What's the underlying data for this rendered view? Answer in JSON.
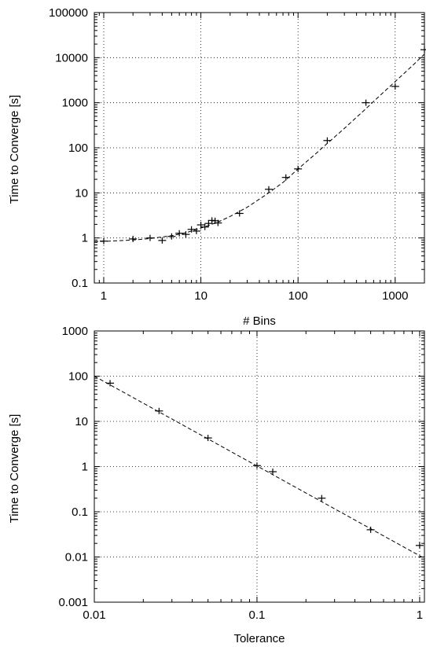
{
  "chart_data": [
    {
      "type": "scatter",
      "xlabel": "# Bins",
      "ylabel": "Time to Converge [s]",
      "xscale": "log",
      "yscale": "log",
      "xlim": [
        0.8,
        2000
      ],
      "ylim": [
        0.1,
        100000
      ],
      "grid": true,
      "x_ticks": [
        {
          "v": 1,
          "label": "1"
        },
        {
          "v": 10,
          "label": "10"
        },
        {
          "v": 100,
          "label": "100"
        },
        {
          "v": 1000,
          "label": "1000"
        }
      ],
      "y_ticks": [
        {
          "v": 0.1,
          "label": "0.1"
        },
        {
          "v": 1,
          "label": "1"
        },
        {
          "v": 10,
          "label": "10"
        },
        {
          "v": 100,
          "label": "100"
        },
        {
          "v": 1000,
          "label": "1000"
        },
        {
          "v": 10000,
          "label": "10000"
        },
        {
          "v": 100000,
          "label": "100000"
        }
      ],
      "points": [
        {
          "x": 1,
          "y": 0.85
        },
        {
          "x": 2,
          "y": 0.95
        },
        {
          "x": 3,
          "y": 1.0
        },
        {
          "x": 4,
          "y": 0.88
        },
        {
          "x": 5,
          "y": 1.08
        },
        {
          "x": 6,
          "y": 1.27
        },
        {
          "x": 7,
          "y": 1.2
        },
        {
          "x": 8,
          "y": 1.55
        },
        {
          "x": 9,
          "y": 1.42
        },
        {
          "x": 10,
          "y": 1.95
        },
        {
          "x": 11,
          "y": 1.75
        },
        {
          "x": 12,
          "y": 2.1
        },
        {
          "x": 13,
          "y": 2.45
        },
        {
          "x": 14,
          "y": 2.4
        },
        {
          "x": 15,
          "y": 2.15
        },
        {
          "x": 25,
          "y": 3.5
        },
        {
          "x": 50,
          "y": 12.0
        },
        {
          "x": 75,
          "y": 22.0
        },
        {
          "x": 100,
          "y": 34.0
        },
        {
          "x": 200,
          "y": 145.0
        },
        {
          "x": 500,
          "y": 1000.0
        },
        {
          "x": 1000,
          "y": 2300.0
        },
        {
          "x": 2000,
          "y": 15000.0
        }
      ],
      "fit_line": [
        {
          "x": 0.8,
          "y": 0.83
        },
        {
          "x": 1,
          "y": 0.84
        },
        {
          "x": 2,
          "y": 0.9
        },
        {
          "x": 3,
          "y": 0.97
        },
        {
          "x": 5,
          "y": 1.12
        },
        {
          "x": 7,
          "y": 1.3
        },
        {
          "x": 10,
          "y": 1.65
        },
        {
          "x": 15,
          "y": 2.25
        },
        {
          "x": 20,
          "y": 3.0
        },
        {
          "x": 30,
          "y": 4.8
        },
        {
          "x": 50,
          "y": 10.0
        },
        {
          "x": 70,
          "y": 17.0
        },
        {
          "x": 100,
          "y": 34.0
        },
        {
          "x": 150,
          "y": 72.0
        },
        {
          "x": 200,
          "y": 125.0
        },
        {
          "x": 300,
          "y": 270.0
        },
        {
          "x": 500,
          "y": 740.0
        },
        {
          "x": 700,
          "y": 1450.0
        },
        {
          "x": 1000,
          "y": 2950.0
        },
        {
          "x": 1500,
          "y": 6600.0
        },
        {
          "x": 2000,
          "y": 12000.0
        }
      ]
    },
    {
      "type": "scatter",
      "xlabel": "Tolerance",
      "ylabel": "Time to Converge [s]",
      "xscale": "log",
      "yscale": "log",
      "xlim": [
        0.01,
        1.07
      ],
      "ylim": [
        0.001,
        1000
      ],
      "grid": true,
      "x_ticks": [
        {
          "v": 0.01,
          "label": "0.01"
        },
        {
          "v": 0.1,
          "label": "0.1"
        },
        {
          "v": 1,
          "label": "1"
        }
      ],
      "y_ticks": [
        {
          "v": 0.001,
          "label": "0.001"
        },
        {
          "v": 0.01,
          "label": "0.01"
        },
        {
          "v": 0.1,
          "label": "0.1"
        },
        {
          "v": 1,
          "label": "1"
        },
        {
          "v": 10,
          "label": "10"
        },
        {
          "v": 100,
          "label": "100"
        },
        {
          "v": 1000,
          "label": "1000"
        }
      ],
      "points": [
        {
          "x": 0.0125,
          "y": 70.0
        },
        {
          "x": 0.025,
          "y": 17.0
        },
        {
          "x": 0.05,
          "y": 4.3
        },
        {
          "x": 0.1,
          "y": 1.05
        },
        {
          "x": 0.125,
          "y": 0.77
        },
        {
          "x": 0.25,
          "y": 0.2
        },
        {
          "x": 0.5,
          "y": 0.04
        },
        {
          "x": 1.0,
          "y": 0.018
        }
      ],
      "fit_line": [
        {
          "x": 0.01,
          "y": 100.0
        },
        {
          "x": 1.07,
          "y": 0.0093
        }
      ]
    }
  ]
}
